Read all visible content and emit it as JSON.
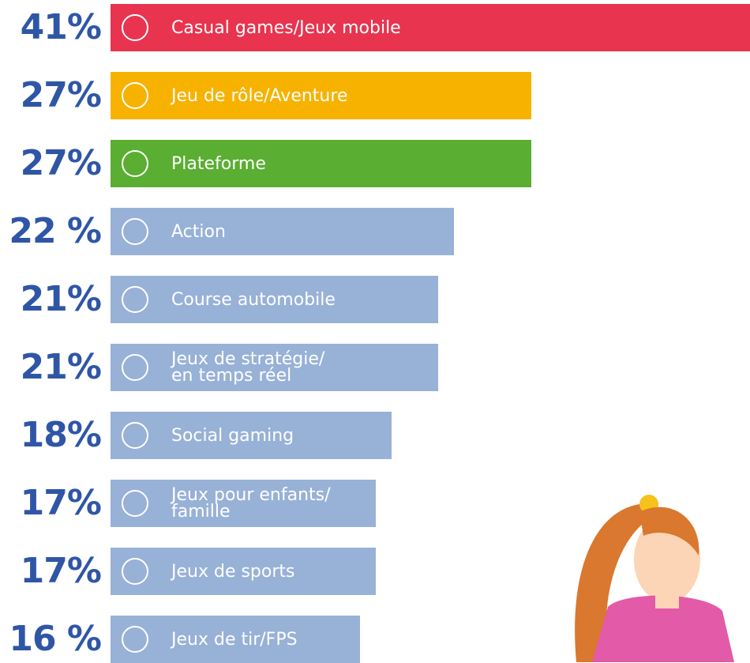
{
  "chart_data": {
    "type": "bar",
    "orientation": "horizontal",
    "categories": [
      "Casual games/Jeux mobile",
      "Jeu de rôle/Aventure",
      "Plateforme",
      "Action",
      "Course automobile",
      "Jeux de stratégie/\nen temps réel",
      "Social gaming",
      "Jeux pour enfants/\nfamille",
      "Jeux de sports",
      "Jeux de tir/FPS"
    ],
    "values": [
      41,
      27,
      27,
      22,
      21,
      21,
      18,
      17,
      17,
      16
    ],
    "value_labels": [
      "41%",
      "27%",
      "27%",
      "22 %",
      "21%",
      "21%",
      "18%",
      "17%",
      "17%",
      "16 %"
    ],
    "colors": [
      "#e8344f",
      "#f7b200",
      "#5aae32",
      "#98b1d7",
      "#98b1d7",
      "#98b1d7",
      "#98b1d7",
      "#98b1d7",
      "#98b1d7",
      "#98b1d7"
    ]
  }
}
